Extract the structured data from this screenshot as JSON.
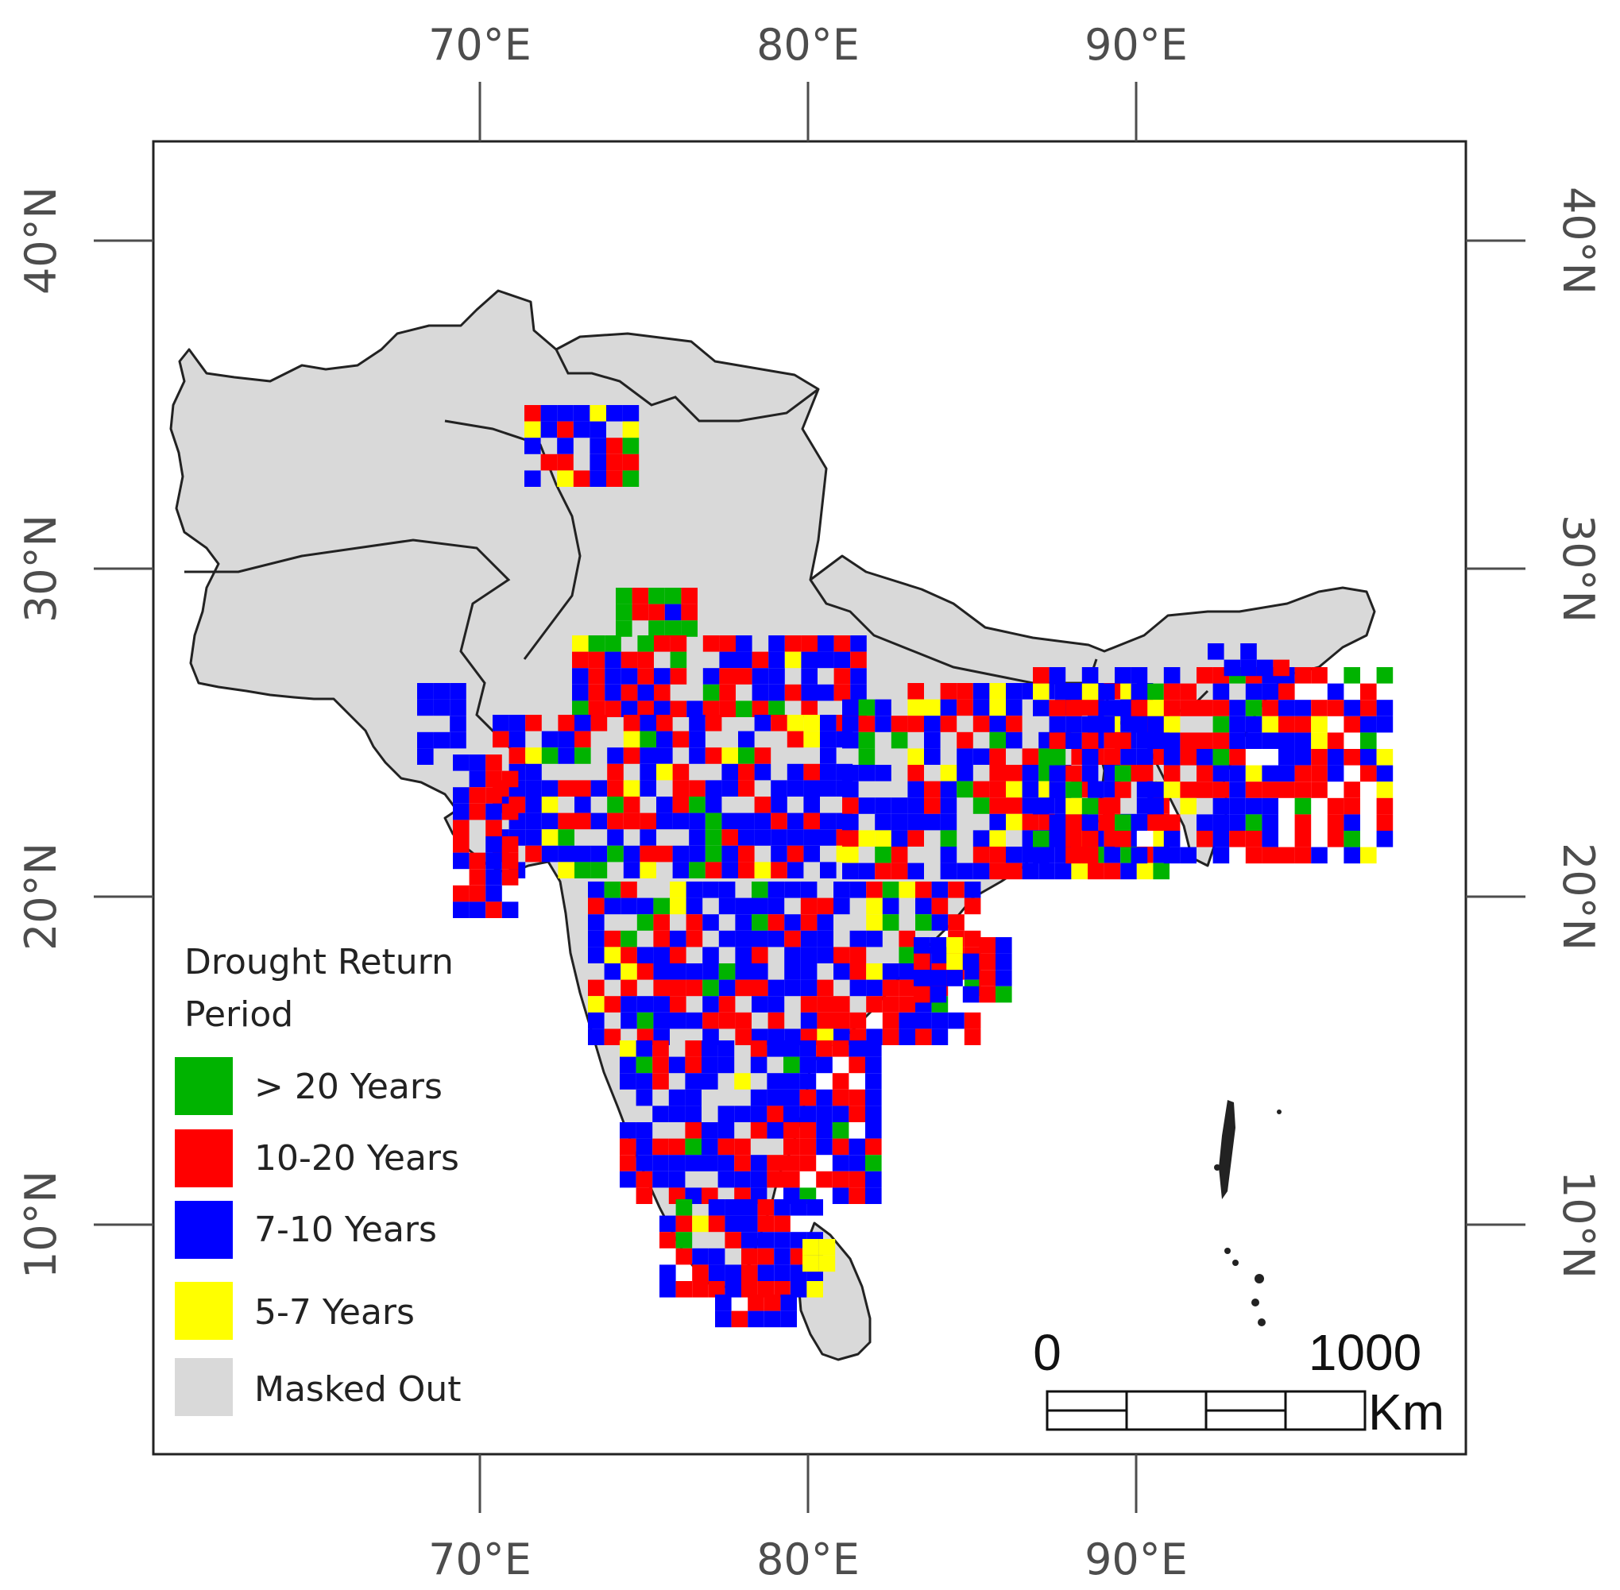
{
  "axes": {
    "x_ticks": [
      "70°E",
      "80°E",
      "90°E"
    ],
    "y_ticks": [
      "40°N",
      "30°N",
      "20°N",
      "10°N"
    ]
  },
  "legend": {
    "title_line1": "Drought Return",
    "title_line2": "Period",
    "items": [
      {
        "label": "> 20 Years",
        "color": "#00b300"
      },
      {
        "label": "10-20 Years",
        "color": "#ff0000"
      },
      {
        "label": "7-10 Years",
        "color": "#0000ff"
      },
      {
        "label": "5-7 Years",
        "color": "#ffff00"
      },
      {
        "label": "Masked  Out",
        "color": "#d9d9d9"
      }
    ]
  },
  "scale_bar": {
    "start_label": "0",
    "end_label": "1000",
    "unit": "Km"
  },
  "colors": {
    "gt20": "#00b300",
    "r10_20": "#ff0000",
    "r7_10": "#0000ff",
    "r5_7": "#ffff00",
    "masked": "#d9d9d9"
  }
}
